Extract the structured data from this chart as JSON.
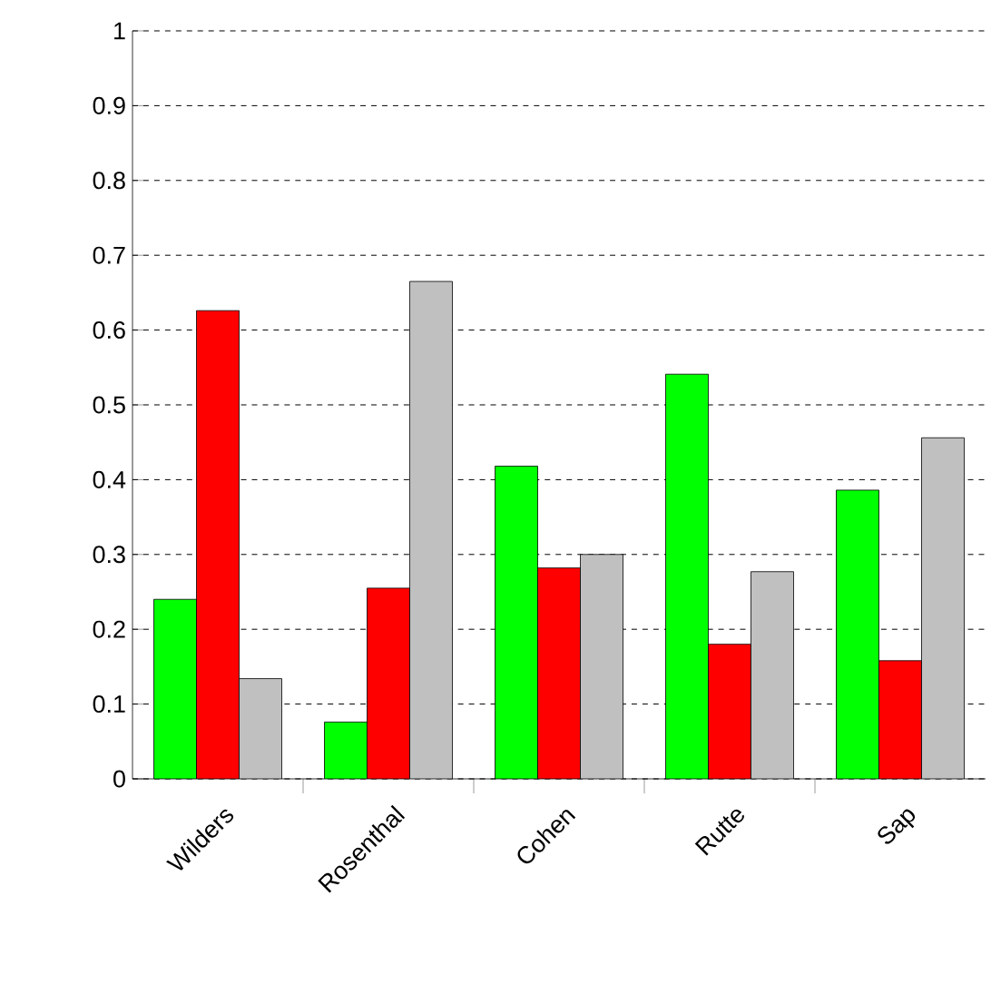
{
  "chart_data": {
    "type": "bar",
    "categories": [
      "Wilders",
      "Rosenthal",
      "Cohen",
      "Rutte",
      "Sap"
    ],
    "series": [
      {
        "color": "#00ff00",
        "values": [
          0.24,
          0.076,
          0.418,
          0.541,
          0.386
        ]
      },
      {
        "color": "#ff0000",
        "values": [
          0.626,
          0.255,
          0.282,
          0.18,
          0.158
        ]
      },
      {
        "color": "#c0c0c0",
        "values": [
          0.134,
          0.665,
          0.3,
          0.277,
          0.456
        ]
      }
    ],
    "ylim": [
      0,
      1
    ],
    "yticks": [
      0,
      0.1,
      0.2,
      0.3,
      0.4,
      0.5,
      0.6,
      0.7,
      0.8,
      0.9,
      1
    ],
    "grid": "y"
  }
}
